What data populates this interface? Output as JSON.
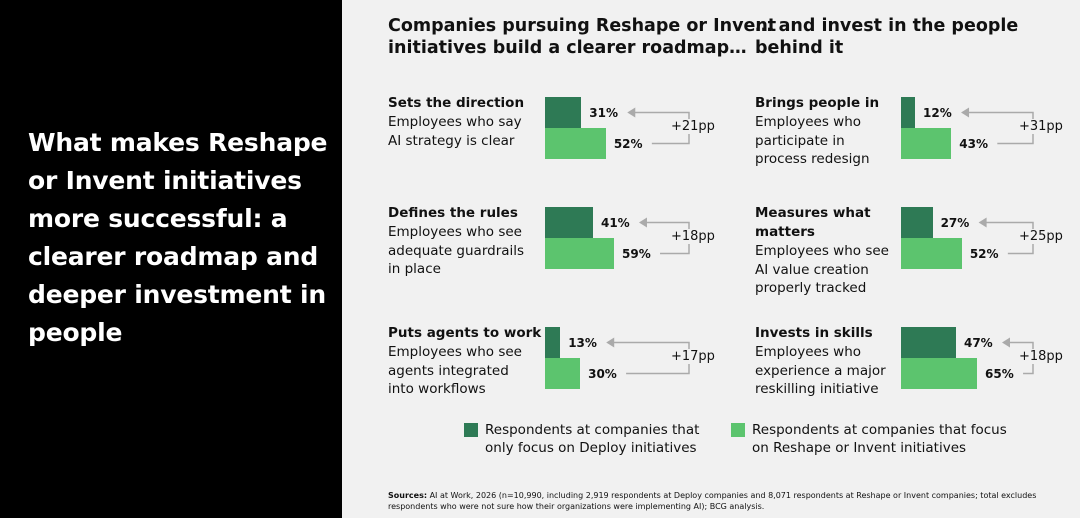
{
  "headline": "What makes Reshape or Invent initiatives more successful: a clearer roadmap and deeper investment in people",
  "colors": {
    "deploy": "#2e7a55",
    "reshape": "#5cc46e",
    "arrow": "#aaaaaa"
  },
  "columns": [
    {
      "title_lines": [
        "Companies pursuing Reshape or Invent",
        "initiatives build a clearer roadmap…"
      ]
    },
    {
      "title_lines": [
        "… and invest in the people",
        "behind it"
      ]
    }
  ],
  "legend": {
    "deploy": [
      "Respondents at companies that",
      "only focus on Deploy initiatives"
    ],
    "reshape": [
      "Respondents at companies that focus",
      "on Reshape or Invent initiatives"
    ]
  },
  "sources_label": "Sources:",
  "sources_text": "AI at Work, 2026 (n=10,990, including 2,919 respondents at Deploy companies and 8,071 respondents at Reshape or Invent companies; total excludes respondents who were not sure how their organizations were implementing AI); BCG analysis.",
  "chart_data": {
    "type": "bar",
    "orientation": "horizontal",
    "unit": "%",
    "series_names": [
      "Respondents at companies that only focus on Deploy initiatives",
      "Respondents at companies that focus on Reshape or Invent initiatives"
    ],
    "panels": [
      {
        "title_lines": [
          "Sets the direction"
        ],
        "desc_lines": [
          "Employees who say",
          "AI strategy is clear"
        ],
        "deploy": 31,
        "reshape": 52,
        "deploy_label": "31%",
        "reshape_label": "52%",
        "diff_label": "+21pp"
      },
      {
        "title_lines": [
          "Defines the rules"
        ],
        "desc_lines": [
          "Employees who see",
          "adequate guardrails",
          "in place"
        ],
        "deploy": 41,
        "reshape": 59,
        "deploy_label": "41%",
        "reshape_label": "59%",
        "diff_label": "+18pp"
      },
      {
        "title_lines": [
          "Puts agents to work"
        ],
        "desc_lines": [
          "Employees who see",
          "agents integrated",
          "into workflows"
        ],
        "deploy": 13,
        "reshape": 30,
        "deploy_label": "13%",
        "reshape_label": "30%",
        "diff_label": "+17pp"
      },
      {
        "title_lines": [
          "Brings people in"
        ],
        "desc_lines": [
          "Employees who",
          "participate in",
          "process redesign"
        ],
        "deploy": 12,
        "reshape": 43,
        "deploy_label": "12%",
        "reshape_label": "43%",
        "diff_label": "+31pp"
      },
      {
        "title_lines": [
          "Measures what",
          "matters"
        ],
        "desc_lines": [
          "Employees who see",
          "AI value creation",
          "properly tracked"
        ],
        "deploy": 27,
        "reshape": 52,
        "deploy_label": "27%",
        "reshape_label": "52%",
        "diff_label": "+25pp"
      },
      {
        "title_lines": [
          "Invests in skills"
        ],
        "desc_lines": [
          "Employees who",
          "experience a major",
          "reskilling initiative"
        ],
        "deploy": 47,
        "reshape": 65,
        "deploy_label": "47%",
        "reshape_label": "65%",
        "diff_label": "+18pp"
      }
    ]
  }
}
